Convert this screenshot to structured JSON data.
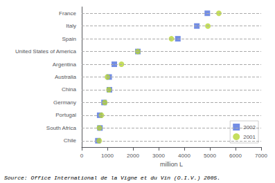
{
  "chart_data": {
    "type": "scatter",
    "orientation": "horizontal",
    "categories": [
      "France",
      "Italy",
      "Spain",
      "United States of America",
      "Argentina",
      "Australia",
      "China",
      "Germany",
      "Portugal",
      "South Africa",
      "Chile"
    ],
    "series": [
      {
        "name": "2002",
        "marker": "square",
        "values": [
          4900,
          4490,
          3750,
          2190,
          1270,
          1070,
          1080,
          870,
          700,
          710,
          630
        ]
      },
      {
        "name": "2001",
        "marker": "circle",
        "values": [
          5350,
          4920,
          3500,
          2190,
          1550,
          1000,
          1060,
          900,
          770,
          690,
          680
        ]
      }
    ],
    "xlabel": "million L",
    "xlim": [
      0,
      7000
    ],
    "xticks": [
      0,
      1000,
      2000,
      3000,
      4000,
      5000,
      6000,
      7000
    ],
    "grid": true,
    "legend": "lower right",
    "annotations": [
      "Source: Office International de la Vigne et du Vin (O.I.V.) 2005."
    ]
  }
}
